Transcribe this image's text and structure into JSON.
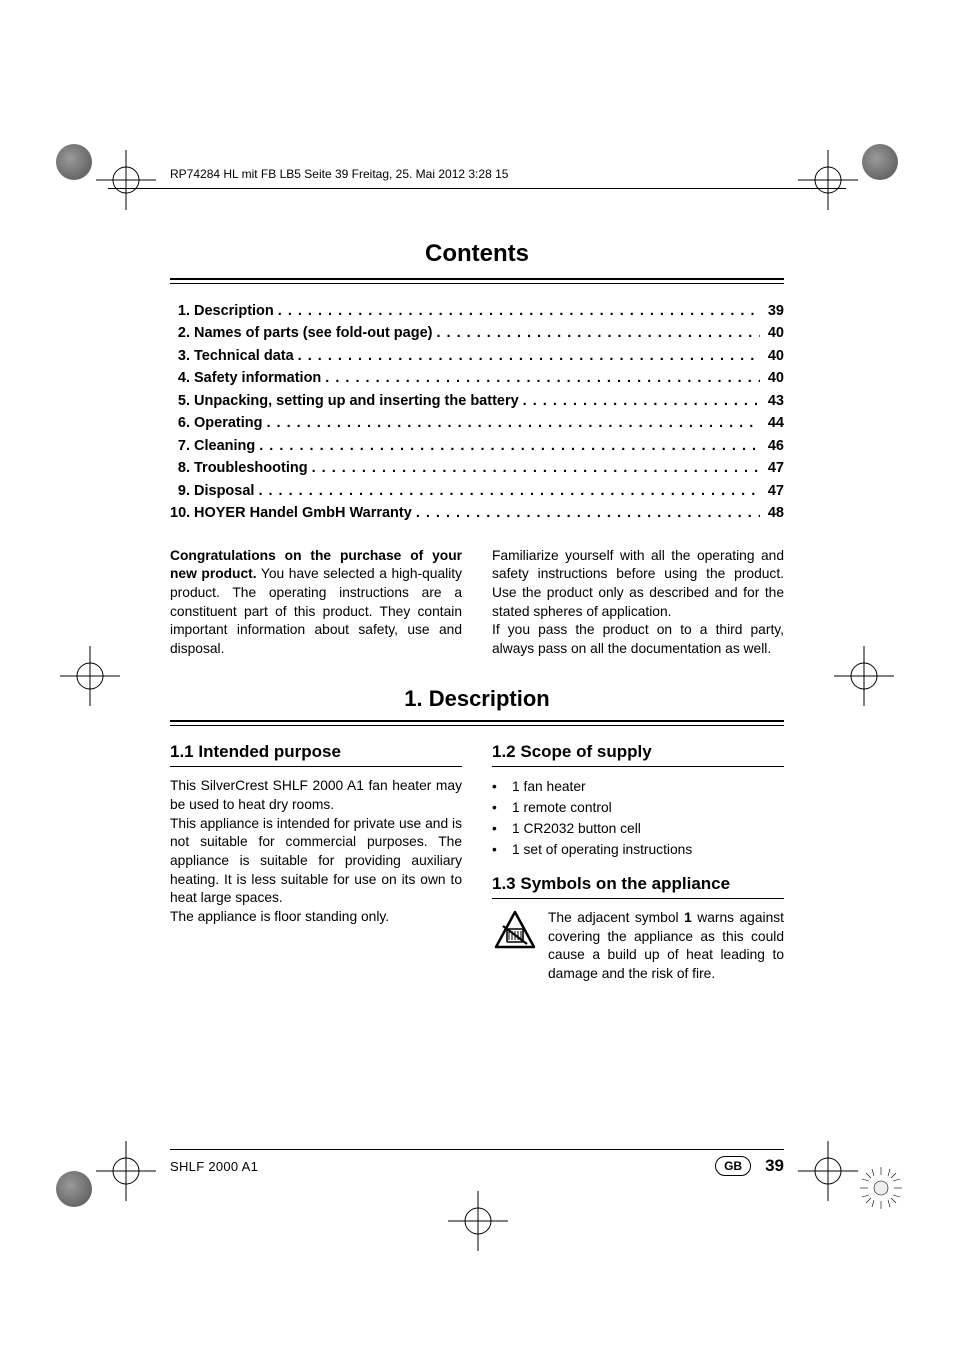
{
  "header_line": "RP74284 HL mit FB LB5  Seite 39  Freitag, 25. Mai 2012  3:28 15",
  "main_title": "Contents",
  "toc": [
    {
      "n": "1.",
      "label": "Description",
      "page": "39"
    },
    {
      "n": "2.",
      "label": "Names of parts (see fold-out page)",
      "page": "40"
    },
    {
      "n": "3.",
      "label": "Technical data",
      "page": "40"
    },
    {
      "n": "4.",
      "label": "Safety information",
      "page": "40"
    },
    {
      "n": "5.",
      "label": "Unpacking, setting up and inserting the battery",
      "page": "43"
    },
    {
      "n": "6.",
      "label": "Operating",
      "page": "44"
    },
    {
      "n": "7.",
      "label": "Cleaning",
      "page": "46"
    },
    {
      "n": "8.",
      "label": "Troubleshooting",
      "page": "47"
    },
    {
      "n": "9.",
      "label": "Disposal",
      "page": "47"
    },
    {
      "n": "10.",
      "label": "HOYER Handel GmbH Warranty",
      "page": "48"
    }
  ],
  "intro": {
    "left_bold": "Congratulations on the purchase of your new product.",
    "left_body": "You have selected a high-quality product. The operating instructions are a constituent part of this product. They contain important information about safety, use and disposal.",
    "right_p1": "Familiarize yourself with all the operating and safety instructions before using the product. Use the product only as described and for the stated spheres of application.",
    "right_p2": "If you pass the product on to a third party, always pass on all the documentation as well."
  },
  "section_title": "1. Description",
  "sec11": {
    "head": "1.1  Intended purpose",
    "p1": "This SilverCrest SHLF 2000 A1 fan heater may be used to heat dry rooms.",
    "p2": "This appliance is intended for private use and is not suitable for commercial purposes. The appliance is suitable for providing auxiliary heating. It is less suitable for use on its own to heat large spaces.",
    "p3": "The appliance is floor standing only."
  },
  "sec12": {
    "head": "1.2  Scope of supply",
    "items": [
      "1 fan heater",
      "1 remote control",
      "1 CR2032 button cell",
      "1 set of operating instructions"
    ]
  },
  "sec13": {
    "head": "1.3  Symbols on the appliance",
    "text_pre": "The adjacent symbol ",
    "bold_ref": "1",
    "text_post": " warns against covering the appliance as this could cause a build up of heat leading to damage and the risk of fire."
  },
  "footer": {
    "model": "SHLF 2000 A1",
    "region": "GB",
    "page": "39"
  }
}
